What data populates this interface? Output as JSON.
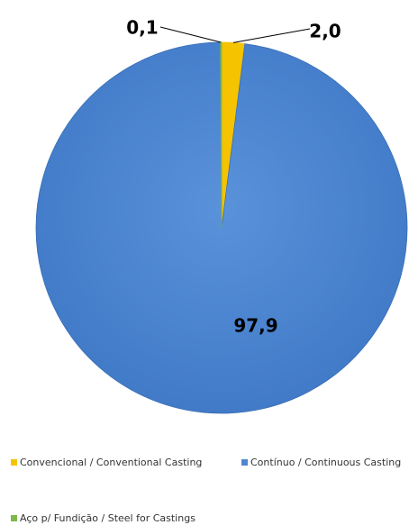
{
  "chart_data": {
    "type": "pie",
    "title": "",
    "slices": [
      {
        "name": "Convencional / Conventional Casting",
        "value": 2.0,
        "label": "2,0",
        "color": "#F5C300"
      },
      {
        "name": "Contínuo / Continuous Casting",
        "value": 97.9,
        "label": "97,9",
        "color": "#4F86D0"
      },
      {
        "name": "Aço p/ Fundição / Steel for Castings",
        "value": 0.1,
        "label": "0,1",
        "color": "#7CB84A"
      }
    ],
    "legend_position": "bottom"
  }
}
